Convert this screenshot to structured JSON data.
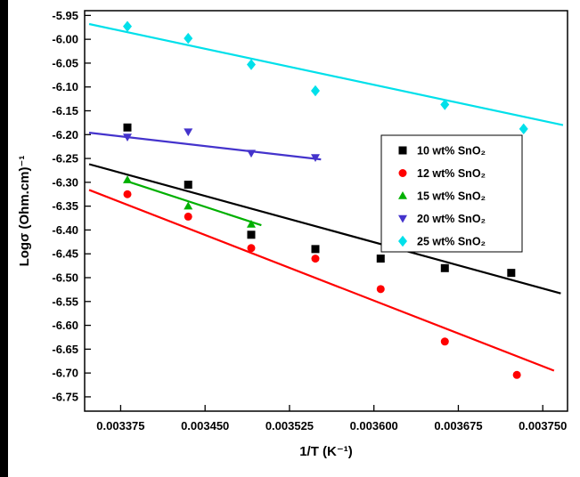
{
  "page": {
    "background": "#ffffff",
    "border_left_color": "#000000"
  },
  "chart_data": {
    "type": "scatter",
    "title": "",
    "xlabel": "1/T (K⁻¹)",
    "ylabel": "Logσ (Ohm.cm)⁻¹",
    "xlim": [
      0.003343,
      0.003772
    ],
    "ylim": [
      -6.78,
      -5.94
    ],
    "xticks": [
      0.003375,
      0.00345,
      0.003525,
      0.0036,
      0.003675,
      0.00375
    ],
    "xtick_labels": [
      "0.003375",
      "0.003450",
      "0.003525",
      "0.003600",
      "0.003675",
      "0.003750"
    ],
    "ytick_labels": [
      "-5.95",
      "-6.00",
      "-6.05",
      "-6.10",
      "-6.15",
      "-6.20",
      "-6.25",
      "-6.30",
      "-6.35",
      "-6.40",
      "-6.45",
      "-6.50",
      "-6.55",
      "-6.60",
      "-6.65",
      "-6.70",
      "-6.75"
    ],
    "grid": false,
    "legend": {
      "position": "right-center",
      "border_color": "#000000",
      "background": "#ffffff"
    },
    "series": [
      {
        "name": "10 wt% SnO₂",
        "marker": "square",
        "color": "#000000",
        "points": [
          [
            0.003381,
            -6.185
          ],
          [
            0.003435,
            -6.305
          ],
          [
            0.003491,
            -6.41
          ],
          [
            0.003548,
            -6.44
          ],
          [
            0.003606,
            -6.46
          ],
          [
            0.003663,
            -6.48
          ],
          [
            0.003722,
            -6.49
          ]
        ],
        "fit_line": [
          [
            0.003347,
            -6.262
          ],
          [
            0.003766,
            -6.533
          ]
        ]
      },
      {
        "name": "12 wt% SnO₂",
        "marker": "circle",
        "color": "#ff0000",
        "points": [
          [
            0.003381,
            -6.325
          ],
          [
            0.003435,
            -6.372
          ],
          [
            0.003491,
            -6.438
          ],
          [
            0.003548,
            -6.46
          ],
          [
            0.003606,
            -6.524
          ],
          [
            0.003663,
            -6.634
          ],
          [
            0.003727,
            -6.704
          ]
        ],
        "fit_line": [
          [
            0.003347,
            -6.316
          ],
          [
            0.00376,
            -6.695
          ]
        ]
      },
      {
        "name": "15 wt% SnO₂",
        "marker": "triangle-up",
        "color": "#00b000",
        "points": [
          [
            0.003381,
            -6.295
          ],
          [
            0.003435,
            -6.35
          ],
          [
            0.003491,
            -6.388
          ]
        ],
        "fit_line": [
          [
            0.003381,
            -6.298
          ],
          [
            0.0035,
            -6.39
          ]
        ]
      },
      {
        "name": "20 wt% SnO₂",
        "marker": "triangle-down",
        "color": "#4433cc",
        "points": [
          [
            0.003381,
            -6.205
          ],
          [
            0.003435,
            -6.194
          ],
          [
            0.003491,
            -6.239
          ],
          [
            0.003548,
            -6.248
          ]
        ],
        "fit_line": [
          [
            0.003347,
            -6.196
          ],
          [
            0.003553,
            -6.252
          ]
        ]
      },
      {
        "name": "25 wt% SnO₂",
        "marker": "diamond",
        "color": "#00e0ea",
        "points": [
          [
            0.003381,
            -5.973
          ],
          [
            0.003435,
            -5.998
          ],
          [
            0.003491,
            -6.053
          ],
          [
            0.003548,
            -6.108
          ],
          [
            0.003663,
            -6.137
          ],
          [
            0.003733,
            -6.188
          ]
        ],
        "fit_line": [
          [
            0.003347,
            -5.968
          ],
          [
            0.003768,
            -6.18
          ]
        ]
      }
    ]
  }
}
